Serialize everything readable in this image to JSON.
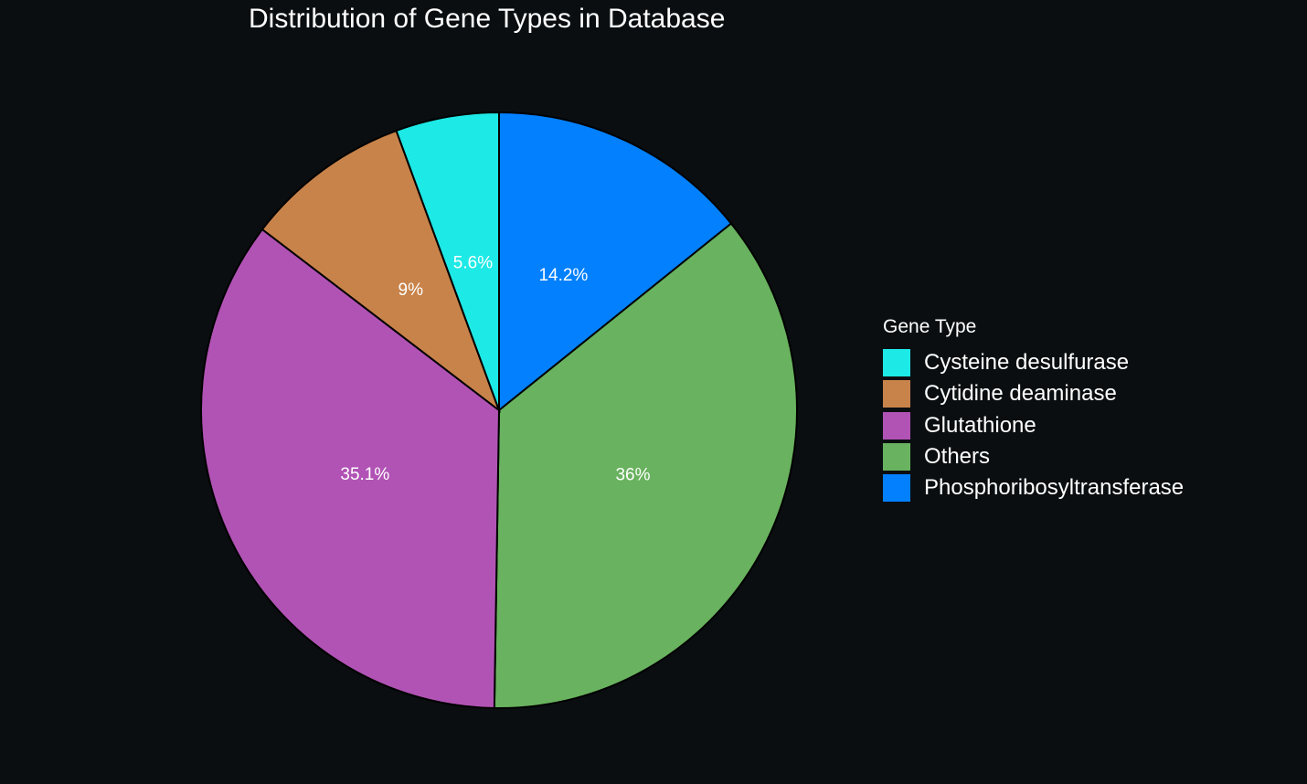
{
  "chart_data": {
    "type": "pie",
    "title": "Distribution of Gene Types in Database",
    "legend_title": "Gene Type",
    "legend_position": "right",
    "legend": [
      {
        "name": "Cysteine desulfurase",
        "color": "#1de9e6"
      },
      {
        "name": "Cytidine deaminase",
        "color": "#c8834a"
      },
      {
        "name": "Glutathione",
        "color": "#b153b5"
      },
      {
        "name": "Others",
        "color": "#69b25f"
      },
      {
        "name": "Phosphoribosyltransferase",
        "color": "#0280fe"
      }
    ],
    "slices": [
      {
        "name": "Phosphoribosyltransferase",
        "value": 14.2,
        "label": "14.2%",
        "color": "#0280fe"
      },
      {
        "name": "Others",
        "value": 36.0,
        "label": "36%",
        "color": "#69b25f"
      },
      {
        "name": "Glutathione",
        "value": 35.1,
        "label": "35.1%",
        "color": "#b153b5"
      },
      {
        "name": "Cytidine deaminase",
        "value": 9.0,
        "label": "9%",
        "color": "#c8834a"
      },
      {
        "name": "Cysteine desulfurase",
        "value": 5.6,
        "label": "5.6%",
        "color": "#1de9e6"
      }
    ]
  }
}
